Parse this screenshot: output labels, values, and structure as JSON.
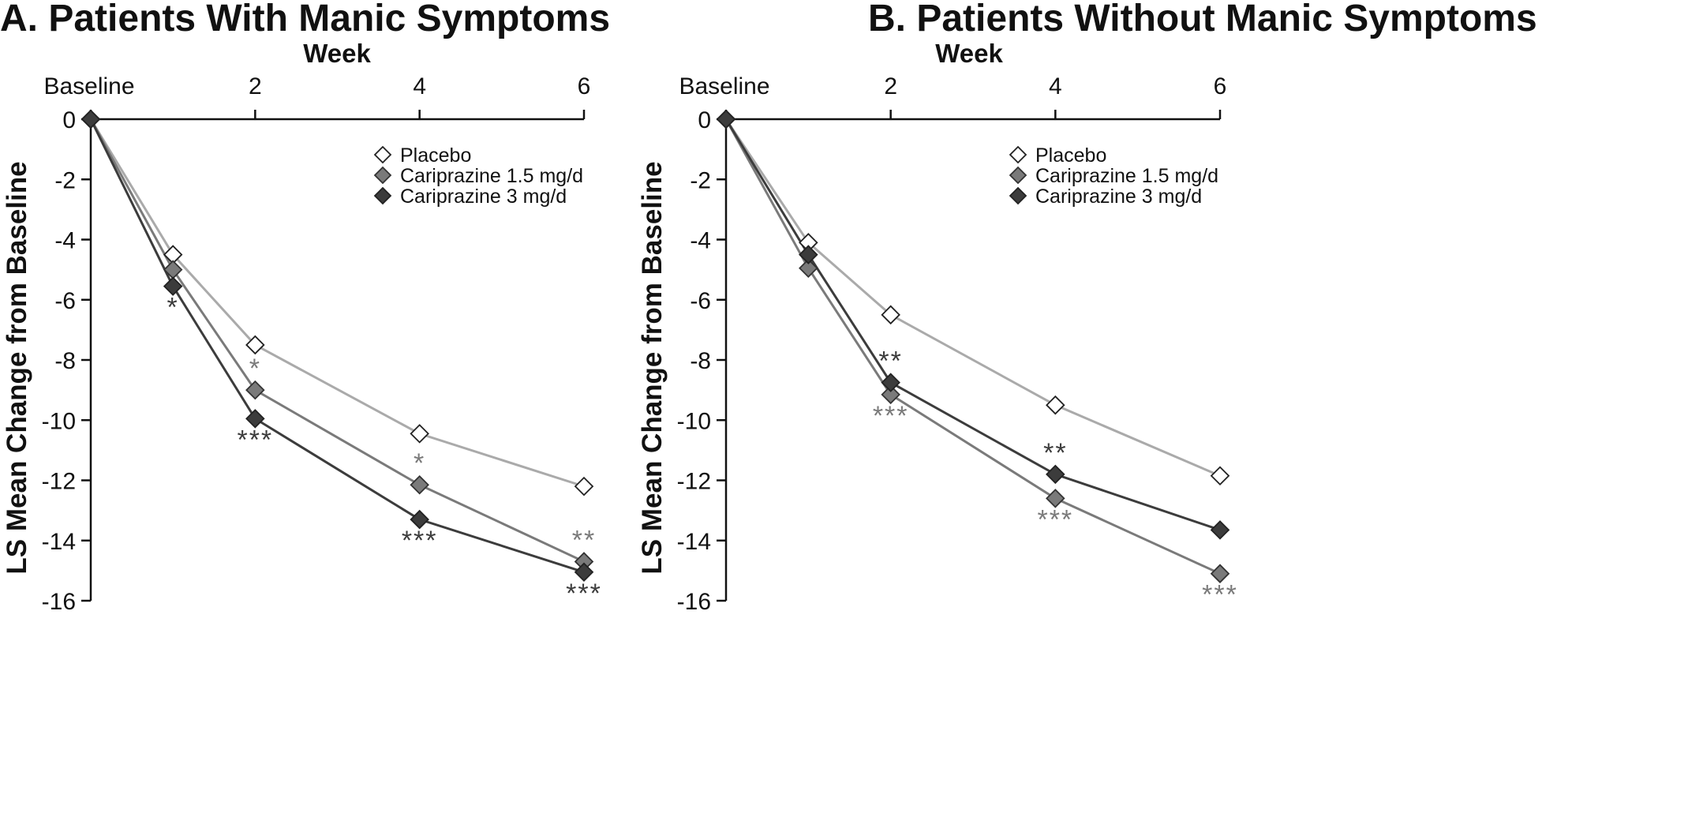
{
  "panels": [
    {
      "title": "A. Patients With Manic Symptoms",
      "week_label": "Week",
      "ylabel": "LS Mean Change from Baseline"
    },
    {
      "title": "B. Patients Without Manic Symptoms",
      "week_label": "Week",
      "ylabel": "LS Mean Change from Baseline"
    }
  ],
  "colors": {
    "placebo_fill": "#ffffff",
    "placebo_line": "#aaaaaa",
    "c15": "#7a7a7a",
    "c3": "#3c3c3c",
    "c15_star": "#7a7a7a",
    "c3_star": "#3c3c3c"
  },
  "chart_data": [
    {
      "type": "line",
      "title": "A. Patients With Manic Symptoms",
      "xlabel": "Week",
      "ylabel": "LS Mean Change from Baseline",
      "x": [
        0,
        1,
        2,
        4,
        6
      ],
      "x_tick_values": [
        0,
        2,
        4,
        6
      ],
      "x_tick_labels": [
        "Baseline",
        "2",
        "4",
        "6"
      ],
      "xlim": [
        0,
        6
      ],
      "ylim": [
        -16,
        0
      ],
      "y_ticks": [
        0,
        -2,
        -4,
        -6,
        -8,
        -10,
        -12,
        -14,
        -16
      ],
      "legend_position": "top-right",
      "series": [
        {
          "name": "Placebo",
          "key": "placebo",
          "values": [
            0,
            -4.5,
            -7.5,
            -10.45,
            -12.2
          ],
          "stars": [
            "",
            "",
            "",
            "",
            ""
          ]
        },
        {
          "name": "Cariprazine 1.5 mg/d",
          "key": "c15",
          "values": [
            0,
            -5.0,
            -9.0,
            -12.15,
            -14.7
          ],
          "stars": [
            "",
            "",
            "*",
            "*",
            "**"
          ]
        },
        {
          "name": "Cariprazine 3 mg/d",
          "key": "c3",
          "values": [
            0,
            -5.55,
            -9.95,
            -13.3,
            -15.05
          ],
          "stars": [
            "",
            "*",
            "***",
            "***",
            "***"
          ]
        }
      ]
    },
    {
      "type": "line",
      "title": "B. Patients Without Manic Symptoms",
      "xlabel": "Week",
      "ylabel": "LS Mean Change from Baseline",
      "x": [
        0,
        1,
        2,
        4,
        6
      ],
      "x_tick_values": [
        0,
        2,
        4,
        6
      ],
      "x_tick_labels": [
        "Baseline",
        "2",
        "4",
        "6"
      ],
      "xlim": [
        0,
        6
      ],
      "ylim": [
        -16,
        0
      ],
      "y_ticks": [
        0,
        -2,
        -4,
        -6,
        -8,
        -10,
        -12,
        -14,
        -16
      ],
      "legend_position": "top-right",
      "series": [
        {
          "name": "Placebo",
          "key": "placebo",
          "values": [
            0,
            -4.1,
            -6.5,
            -9.5,
            -11.85
          ],
          "stars": [
            "",
            "",
            "",
            "",
            ""
          ]
        },
        {
          "name": "Cariprazine 1.5 mg/d",
          "key": "c15",
          "values": [
            0,
            -4.95,
            -9.15,
            -12.6,
            -15.1
          ],
          "stars": [
            "",
            "",
            "***",
            "***",
            "***"
          ]
        },
        {
          "name": "Cariprazine 3 mg/d",
          "key": "c3",
          "values": [
            0,
            -4.5,
            -8.75,
            -11.8,
            -13.65
          ],
          "stars": [
            "",
            "",
            "**",
            "**",
            ""
          ]
        }
      ]
    }
  ]
}
